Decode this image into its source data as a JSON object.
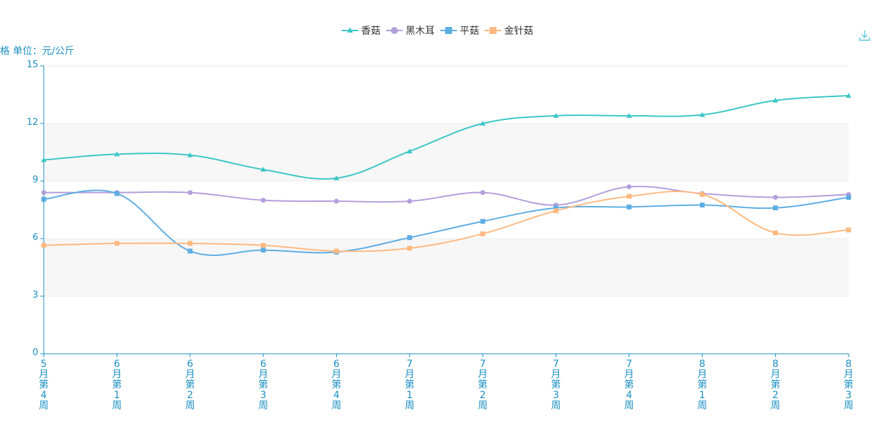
{
  "chart_data": {
    "type": "line",
    "ylabel": "价格 单位：元/公斤",
    "ylim": [
      0,
      15
    ],
    "yticks": [
      0,
      3,
      6,
      9,
      12,
      15
    ],
    "categories": [
      "5月第4周",
      "6月第1周",
      "6月第2周",
      "6月第3周",
      "6月第4周",
      "7月第1周",
      "7月第2周",
      "7月第3周",
      "7月第4周",
      "8月第1周",
      "8月第2周",
      "8月第3周"
    ],
    "legend_position": "top-center",
    "grid": "horizontal-bands",
    "series": [
      {
        "name": "香菇",
        "color": "#3cc6c6",
        "marker": "triangle",
        "values": [
          10.1,
          10.4,
          10.35,
          9.6,
          9.15,
          10.55,
          12.0,
          12.4,
          12.4,
          12.45,
          13.2,
          13.45
        ]
      },
      {
        "name": "黑木耳",
        "color": "#b39ddb",
        "marker": "circle",
        "values": [
          8.4,
          8.4,
          8.4,
          8.0,
          7.95,
          7.95,
          8.4,
          7.75,
          8.7,
          8.35,
          8.15,
          8.3
        ]
      },
      {
        "name": "平菇",
        "color": "#5dade2",
        "marker": "square",
        "values": [
          8.05,
          8.35,
          5.35,
          5.4,
          5.3,
          6.05,
          6.9,
          7.6,
          7.65,
          7.75,
          7.6,
          8.15
        ]
      },
      {
        "name": "金针菇",
        "color": "#ffb980",
        "marker": "square",
        "values": [
          5.65,
          5.75,
          5.75,
          5.65,
          5.35,
          5.5,
          6.25,
          7.45,
          8.2,
          8.3,
          6.3,
          6.45
        ]
      }
    ]
  }
}
